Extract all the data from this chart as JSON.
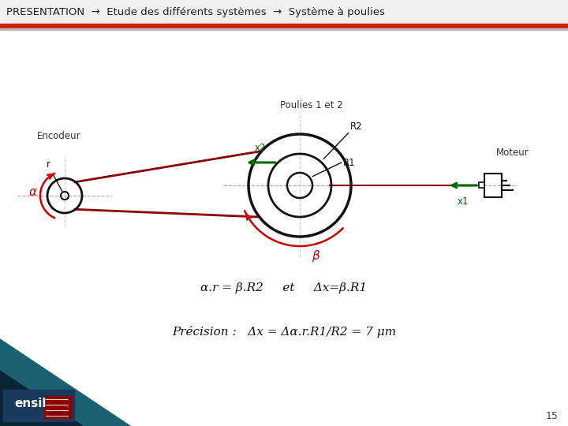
{
  "title_text": "PRESENTATION  →  Etude des différents systèmes  →  Système à poulies",
  "bg_color": "#ffffff",
  "page_number": "15",
  "label_encodeur": "Encodeur",
  "label_moteur": "Moteur",
  "label_poulies": "Poulies 1 et 2",
  "label_r": "r",
  "label_R1": "R1",
  "label_R2": "R2",
  "label_x1": "x1",
  "label_x2": "x2",
  "label_alpha": "α",
  "label_beta": "β",
  "formula1": "α.r = β.R2     et     Δx=β.R1",
  "formula2": "Précision :   Δx = Δα.r.R1/R2 = 7 μm"
}
